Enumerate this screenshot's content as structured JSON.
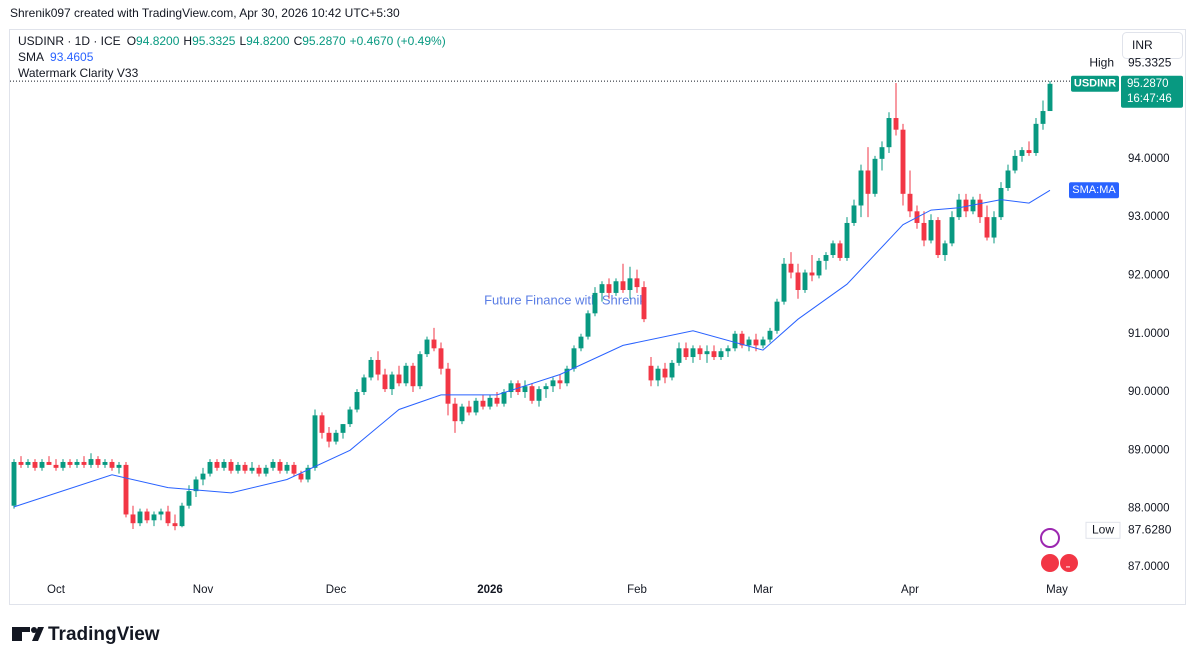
{
  "chart_data": {
    "type": "candlestick",
    "credit": "Shrenik097 created with TradingView.com, Apr 30, 2026 10:42 UTC+5:30",
    "symbol": "USDINR · 1D · ICE",
    "ohlc_legend": [
      [
        "O",
        "94.8200"
      ],
      [
        "H",
        "95.3325"
      ],
      [
        "L",
        "94.8200"
      ],
      [
        "C",
        "95.2870"
      ]
    ],
    "change": "+0.4670 (+0.49%)",
    "indicator_name": "SMA",
    "indicator_value": "93.4605",
    "indicator2": "Watermark Clarity V33",
    "watermark": "Future Finance with Shrenik",
    "currency": "INR",
    "brand": "TradingView",
    "up_color": "#089981",
    "down_color": "#f23645",
    "ylim": [
      86.81,
      96.21
    ],
    "yticks": [
      {
        "value": 87,
        "label": "87.0000"
      },
      {
        "value": 88,
        "label": "88.0000"
      },
      {
        "value": 89,
        "label": "89.0000"
      },
      {
        "value": 90,
        "label": "90.0000"
      },
      {
        "value": 91,
        "label": "91.0000"
      },
      {
        "value": 92,
        "label": "92.0000"
      },
      {
        "value": 93,
        "label": "93.0000"
      },
      {
        "value": 94,
        "label": "94.0000"
      }
    ],
    "xticks": [
      {
        "value": 6,
        "label": "Oct"
      },
      {
        "value": 27,
        "label": "Nov"
      },
      {
        "value": 46,
        "label": "Dec"
      },
      {
        "value": 68,
        "label": "2026"
      },
      {
        "value": 89,
        "label": "Feb"
      },
      {
        "value": 107,
        "label": "Mar"
      },
      {
        "value": 128,
        "label": "Apr"
      },
      {
        "value": 149,
        "label": "May"
      }
    ],
    "high": {
      "name": "High",
      "value": 95.3325
    },
    "low": {
      "name": "Low",
      "value": {
        "value": 87.628,
        "label": "87.6280"
      }
    },
    "last": {
      "name": "USDINR",
      "value": {
        "value": 95.287,
        "label": "95.2870"
      },
      "countdown": "16:47:46"
    },
    "sma_badge": "SMA:MA",
    "sma": {
      "name": "SMA",
      "color": "#2962ff",
      "x": [
        0,
        14,
        22,
        31,
        39,
        48,
        55,
        61,
        69,
        78,
        87,
        97,
        107,
        112,
        119,
        127,
        131,
        135,
        141,
        145,
        148
      ],
      "values": [
        88.03,
        88.58,
        88.36,
        88.27,
        88.5,
        89.0,
        89.7,
        89.95,
        89.95,
        90.3,
        90.8,
        91.05,
        90.72,
        91.25,
        91.85,
        92.87,
        93.12,
        93.16,
        93.3,
        93.24,
        93.4605
      ]
    },
    "candles": [
      [
        88.05,
        88.85,
        88.0,
        88.8
      ],
      [
        88.8,
        88.9,
        88.7,
        88.75
      ],
      [
        88.75,
        88.85,
        88.7,
        88.8
      ],
      [
        88.8,
        88.85,
        88.65,
        88.7
      ],
      [
        88.7,
        88.85,
        88.65,
        88.8
      ],
      [
        88.8,
        88.9,
        88.75,
        88.75
      ],
      [
        88.75,
        88.85,
        88.65,
        88.7
      ],
      [
        88.7,
        88.85,
        88.65,
        88.8
      ],
      [
        88.8,
        88.85,
        88.7,
        88.75
      ],
      [
        88.75,
        88.85,
        88.7,
        88.8
      ],
      [
        88.8,
        88.9,
        88.7,
        88.75
      ],
      [
        88.75,
        88.95,
        88.7,
        88.85
      ],
      [
        88.85,
        88.9,
        88.7,
        88.75
      ],
      [
        88.75,
        88.85,
        88.7,
        88.8
      ],
      [
        88.8,
        88.85,
        88.65,
        88.7
      ],
      [
        88.7,
        88.8,
        88.6,
        88.75
      ],
      [
        88.75,
        88.8,
        87.85,
        87.9
      ],
      [
        87.9,
        88.05,
        87.65,
        87.75
      ],
      [
        87.75,
        88.0,
        87.7,
        87.95
      ],
      [
        87.95,
        88.0,
        87.75,
        87.8
      ],
      [
        87.8,
        87.95,
        87.7,
        87.9
      ],
      [
        87.9,
        88.0,
        87.8,
        87.95
      ],
      [
        87.95,
        88.05,
        87.7,
        87.75
      ],
      [
        87.75,
        87.9,
        87.628,
        87.7
      ],
      [
        87.7,
        88.1,
        87.68,
        88.05
      ],
      [
        88.05,
        88.4,
        88.0,
        88.3
      ],
      [
        88.3,
        88.55,
        88.2,
        88.5
      ],
      [
        88.5,
        88.7,
        88.4,
        88.6
      ],
      [
        88.6,
        88.85,
        88.55,
        88.8
      ],
      [
        88.8,
        88.85,
        88.65,
        88.7
      ],
      [
        88.7,
        88.85,
        88.65,
        88.8
      ],
      [
        88.8,
        88.85,
        88.6,
        88.65
      ],
      [
        88.65,
        88.8,
        88.6,
        88.75
      ],
      [
        88.75,
        88.8,
        88.6,
        88.65
      ],
      [
        88.65,
        88.8,
        88.6,
        88.7
      ],
      [
        88.7,
        88.75,
        88.55,
        88.6
      ],
      [
        88.6,
        88.75,
        88.55,
        88.7
      ],
      [
        88.7,
        88.85,
        88.65,
        88.8
      ],
      [
        88.8,
        88.85,
        88.6,
        88.65
      ],
      [
        88.65,
        88.8,
        88.6,
        88.75
      ],
      [
        88.75,
        88.8,
        88.55,
        88.6
      ],
      [
        88.6,
        88.65,
        88.45,
        88.5
      ],
      [
        88.5,
        88.75,
        88.45,
        88.7
      ],
      [
        88.7,
        89.7,
        88.65,
        89.6
      ],
      [
        89.6,
        89.65,
        89.2,
        89.3
      ],
      [
        89.3,
        89.4,
        89.05,
        89.15
      ],
      [
        89.15,
        89.35,
        89.1,
        89.3
      ],
      [
        89.3,
        89.45,
        89.2,
        89.45
      ],
      [
        89.45,
        89.75,
        89.4,
        89.7
      ],
      [
        89.7,
        90.05,
        89.65,
        90.0
      ],
      [
        90.0,
        90.3,
        89.95,
        90.25
      ],
      [
        90.25,
        90.6,
        90.2,
        90.55
      ],
      [
        90.55,
        90.7,
        90.2,
        90.3
      ],
      [
        90.3,
        90.4,
        90.0,
        90.05
      ],
      [
        90.05,
        90.35,
        89.95,
        90.3
      ],
      [
        90.3,
        90.45,
        90.1,
        90.15
      ],
      [
        90.15,
        90.5,
        90.1,
        90.45
      ],
      [
        90.45,
        90.5,
        90.0,
        90.1
      ],
      [
        90.1,
        90.7,
        90.05,
        90.65
      ],
      [
        90.65,
        90.95,
        90.6,
        90.9
      ],
      [
        90.9,
        91.1,
        90.7,
        90.75
      ],
      [
        90.75,
        90.85,
        90.3,
        90.4
      ],
      [
        90.4,
        90.5,
        89.6,
        89.8
      ],
      [
        89.8,
        89.9,
        89.3,
        89.5
      ],
      [
        89.5,
        89.8,
        89.45,
        89.75
      ],
      [
        89.75,
        89.85,
        89.6,
        89.65
      ],
      [
        89.65,
        89.9,
        89.6,
        89.85
      ],
      [
        89.85,
        89.95,
        89.7,
        89.75
      ],
      [
        89.75,
        89.95,
        89.7,
        89.9
      ],
      [
        89.9,
        90.0,
        89.75,
        89.8
      ],
      [
        89.8,
        90.05,
        89.75,
        90.0
      ],
      [
        90.0,
        90.2,
        89.9,
        90.15
      ],
      [
        90.15,
        90.2,
        89.95,
        90.0
      ],
      [
        90.0,
        90.2,
        89.9,
        90.1
      ],
      [
        90.1,
        90.15,
        89.8,
        89.85
      ],
      [
        89.85,
        90.1,
        89.75,
        90.05
      ],
      [
        90.05,
        90.15,
        89.9,
        90.1
      ],
      [
        90.1,
        90.25,
        90.0,
        90.2
      ],
      [
        90.2,
        90.3,
        90.05,
        90.15
      ],
      [
        90.15,
        90.45,
        90.1,
        90.4
      ],
      [
        90.4,
        90.8,
        90.35,
        90.75
      ],
      [
        90.75,
        91.0,
        90.7,
        90.95
      ],
      [
        90.95,
        91.4,
        90.9,
        91.35
      ],
      [
        91.35,
        91.8,
        91.3,
        91.7
      ],
      [
        91.7,
        91.9,
        91.55,
        91.85
      ],
      [
        91.85,
        91.95,
        91.6,
        91.7
      ],
      [
        91.7,
        91.95,
        91.65,
        91.9
      ],
      [
        91.9,
        92.2,
        91.7,
        91.75
      ],
      [
        91.75,
        92.15,
        91.6,
        91.95
      ],
      [
        91.95,
        92.1,
        91.7,
        91.8
      ],
      [
        91.8,
        91.9,
        91.2,
        91.25
      ],
      [
        90.45,
        90.6,
        90.1,
        90.2
      ],
      [
        90.2,
        90.45,
        90.1,
        90.4
      ],
      [
        90.4,
        90.5,
        90.15,
        90.25
      ],
      [
        90.25,
        90.55,
        90.2,
        90.5
      ],
      [
        90.5,
        90.85,
        90.45,
        90.75
      ],
      [
        90.75,
        90.85,
        90.55,
        90.6
      ],
      [
        90.6,
        90.8,
        90.5,
        90.75
      ],
      [
        90.75,
        90.8,
        90.55,
        90.65
      ],
      [
        90.65,
        90.8,
        90.5,
        90.7
      ],
      [
        90.7,
        90.8,
        90.55,
        90.6
      ],
      [
        90.6,
        90.75,
        90.55,
        90.7
      ],
      [
        90.7,
        90.8,
        90.6,
        90.75
      ],
      [
        90.75,
        91.05,
        90.7,
        91.0
      ],
      [
        91.0,
        91.05,
        90.75,
        90.8
      ],
      [
        90.8,
        90.95,
        90.7,
        90.9
      ],
      [
        90.9,
        91.0,
        90.7,
        90.8
      ],
      [
        90.8,
        90.95,
        90.75,
        90.9
      ],
      [
        90.9,
        91.1,
        90.85,
        91.05
      ],
      [
        91.05,
        91.6,
        91.0,
        91.55
      ],
      [
        91.55,
        92.3,
        91.5,
        92.2
      ],
      [
        92.2,
        92.4,
        91.95,
        92.05
      ],
      [
        92.05,
        92.2,
        91.6,
        91.75
      ],
      [
        91.75,
        92.1,
        91.7,
        92.05
      ],
      [
        92.05,
        92.35,
        91.9,
        92.0
      ],
      [
        92.0,
        92.3,
        91.95,
        92.25
      ],
      [
        92.25,
        92.4,
        92.1,
        92.35
      ],
      [
        92.35,
        92.6,
        92.3,
        92.55
      ],
      [
        92.55,
        92.6,
        92.25,
        92.3
      ],
      [
        92.3,
        93.0,
        92.25,
        92.9
      ],
      [
        92.9,
        93.3,
        92.85,
        93.2
      ],
      [
        93.2,
        93.9,
        93.0,
        93.8
      ],
      [
        93.8,
        94.2,
        93.0,
        93.4
      ],
      [
        93.4,
        94.05,
        93.35,
        94.0
      ],
      [
        94.0,
        94.3,
        93.8,
        94.2
      ],
      [
        94.2,
        94.8,
        94.1,
        94.7
      ],
      [
        94.7,
        95.3,
        94.4,
        94.5
      ],
      [
        94.5,
        94.6,
        93.2,
        93.4
      ],
      [
        93.4,
        93.8,
        93.0,
        93.1
      ],
      [
        93.1,
        93.2,
        92.8,
        92.9
      ],
      [
        92.9,
        93.1,
        92.5,
        92.6
      ],
      [
        92.6,
        93.05,
        92.55,
        92.95
      ],
      [
        92.95,
        93.0,
        92.3,
        92.35
      ],
      [
        92.35,
        92.6,
        92.25,
        92.55
      ],
      [
        92.55,
        93.1,
        92.5,
        93.0
      ],
      [
        93.0,
        93.4,
        92.95,
        93.3
      ],
      [
        93.3,
        93.4,
        93.0,
        93.1
      ],
      [
        93.1,
        93.35,
        93.05,
        93.3
      ],
      [
        93.3,
        93.4,
        92.9,
        93.0
      ],
      [
        93.0,
        93.2,
        92.6,
        92.65
      ],
      [
        92.65,
        93.1,
        92.55,
        93.0
      ],
      [
        93.0,
        93.6,
        92.95,
        93.5
      ],
      [
        93.5,
        93.9,
        93.45,
        93.8
      ],
      [
        93.8,
        94.15,
        93.75,
        94.05
      ],
      [
        94.05,
        94.2,
        93.95,
        94.15
      ],
      [
        94.15,
        94.3,
        94.05,
        94.1
      ],
      [
        94.1,
        94.7,
        94.05,
        94.6
      ],
      [
        94.6,
        95.0,
        94.5,
        94.82
      ],
      [
        94.82,
        95.3325,
        94.82,
        95.287
      ]
    ]
  }
}
